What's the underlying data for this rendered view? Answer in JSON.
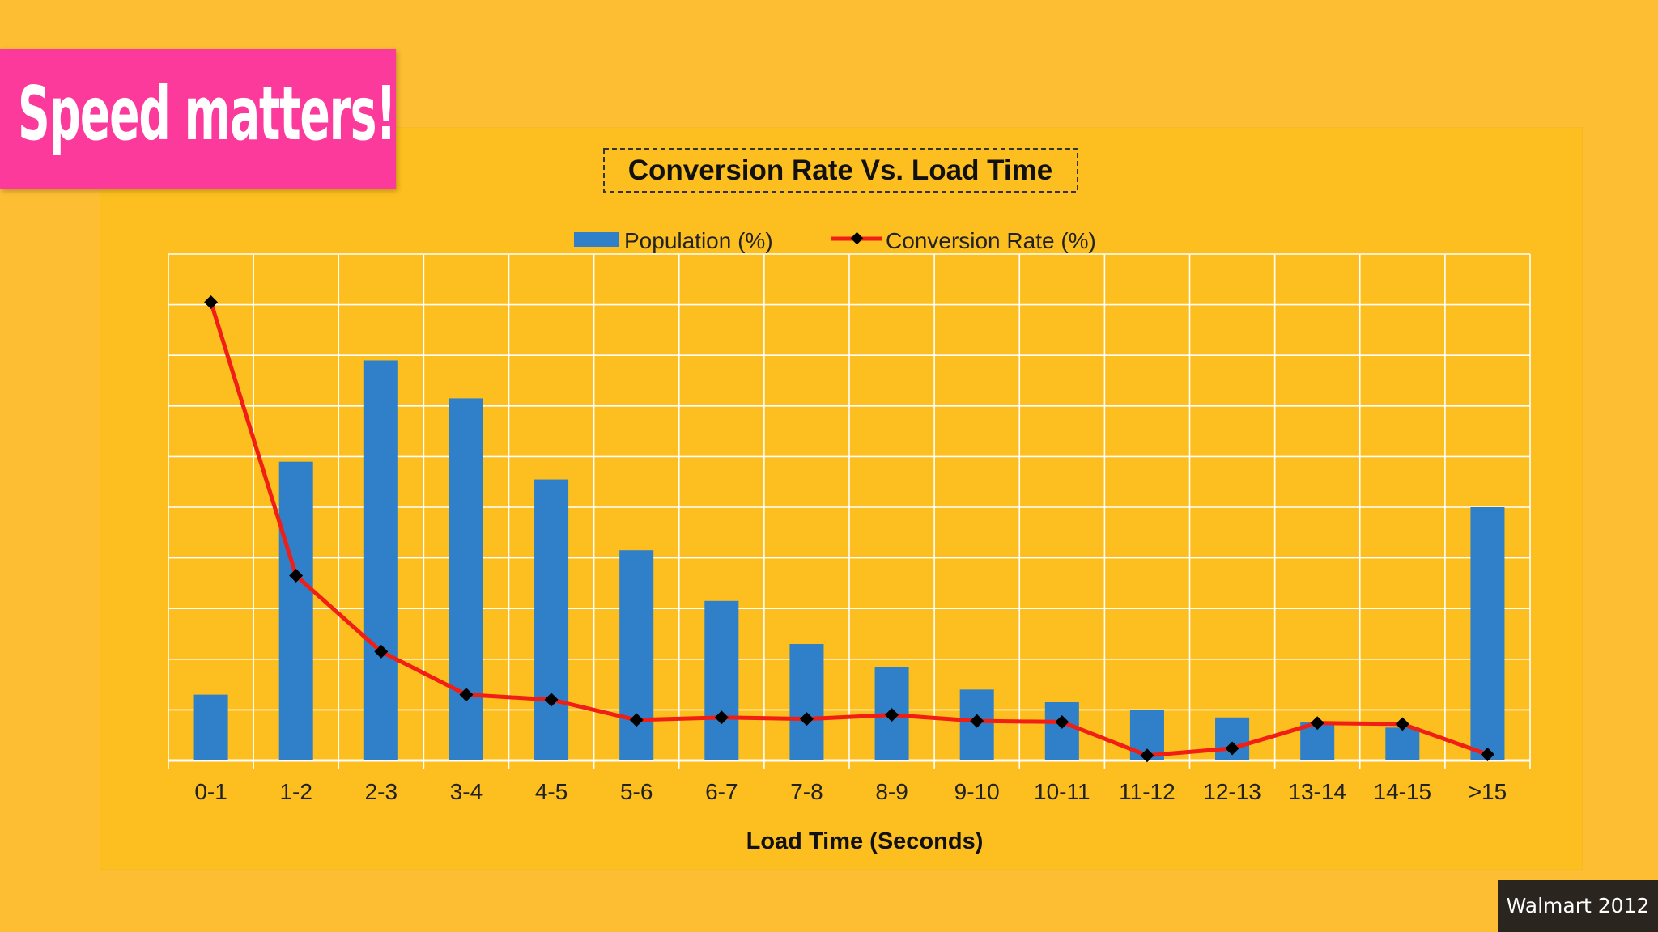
{
  "slide": {
    "title": "Speed matters!",
    "source": "Walmart 2012"
  },
  "colors": {
    "background": "#FDBE34",
    "title_box": "#FB3A9C",
    "bar": "#2F80C9",
    "line": "#F01E14",
    "marker": "#000000",
    "grid": "#FFFFFF"
  },
  "chart_data": {
    "type": "bar",
    "title": "Conversion Rate Vs. Load Time",
    "xlabel": "Load Time (Seconds)",
    "ylabel": "",
    "categories": [
      "0-1",
      "1-2",
      "2-3",
      "3-4",
      "4-5",
      "5-6",
      "6-7",
      "7-8",
      "8-9",
      "9-10",
      "10-11",
      "11-12",
      "12-13",
      "13-14",
      "14-15",
      ">15"
    ],
    "ylim": [
      0,
      10
    ],
    "grid": true,
    "legend": "top-center",
    "series": [
      {
        "name": "Population (%)",
        "type": "bar",
        "values": [
          1.3,
          5.9,
          7.9,
          7.15,
          5.55,
          4.15,
          3.15,
          2.3,
          1.85,
          1.4,
          1.15,
          1.0,
          0.85,
          0.75,
          0.65,
          5.0
        ]
      },
      {
        "name": "Conversion Rate (%)",
        "type": "line",
        "values": [
          9.05,
          3.65,
          2.15,
          1.3,
          1.2,
          0.8,
          0.85,
          0.82,
          0.9,
          0.78,
          0.76,
          0.1,
          0.24,
          0.74,
          0.72,
          0.12
        ]
      }
    ]
  }
}
